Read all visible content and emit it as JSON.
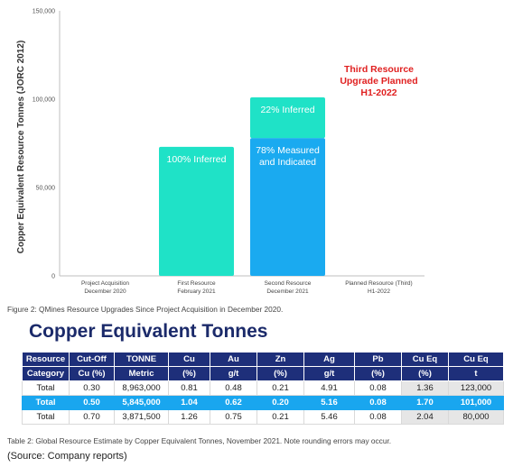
{
  "chart_data": {
    "type": "bar",
    "ylabel": "Copper Equivalent Resource Tonnes (JORC 2012)",
    "ylim": [
      0,
      150000
    ],
    "yticks": [
      0,
      50000,
      100000,
      150000
    ],
    "ytick_labels": [
      "0",
      "50,000",
      "100,000",
      "150,000"
    ],
    "grid": false,
    "categories": [
      [
        "Project Acquisition",
        "December 2020"
      ],
      [
        "First Resource",
        "February 2021"
      ],
      [
        "Second Resource",
        "December 2021"
      ],
      [
        "Planned Resource (Third)",
        "H1-2022"
      ]
    ],
    "series": [
      {
        "values": [
          0,
          0,
          78000,
          0
        ],
        "color": "#1aaaf0"
      },
      {
        "values": [
          0,
          73000,
          23000,
          0
        ],
        "color": "#1fe2c7"
      }
    ],
    "bar_labels": [
      {
        "bar": 1,
        "lines": [
          "100% Inferred"
        ]
      },
      {
        "bar": 2,
        "lines": [
          "22% Inferred"
        ]
      },
      {
        "bar": 2,
        "lines": [
          "78% Measured",
          "and Indicated"
        ]
      }
    ],
    "annotation": [
      "Third Resource",
      "Upgrade Planned",
      "H1-2022"
    ],
    "annotation_color": "#e02020"
  },
  "figure_caption": "Figure 2: QMines Resource Upgrades Since Project Acquisition in December 2020.",
  "table_title": "Copper Equivalent Tonnes",
  "table": {
    "headers": [
      [
        "Resource",
        "Category"
      ],
      [
        "Cut-Off",
        "Cu (%)"
      ],
      [
        "TONNE",
        "Metric"
      ],
      [
        "Cu",
        "(%)"
      ],
      [
        "Au",
        "g/t"
      ],
      [
        "Zn",
        "(%)"
      ],
      [
        "Ag",
        "g/t"
      ],
      [
        "Pb",
        "(%)"
      ],
      [
        "Cu Eq",
        "(%)"
      ],
      [
        "Cu Eq",
        "t"
      ]
    ],
    "rows": [
      [
        "Total",
        "0.30",
        "8,963,000",
        "0.81",
        "0.48",
        "0.21",
        "4.91",
        "0.08",
        "1.36",
        "123,000"
      ],
      [
        "Total",
        "0.50",
        "5,845,000",
        "1.04",
        "0.62",
        "0.20",
        "5.16",
        "0.08",
        "1.70",
        "101,000"
      ],
      [
        "Total",
        "0.70",
        "3,871,500",
        "1.26",
        "0.75",
        "0.21",
        "5.46",
        "0.08",
        "2.04",
        "80,000"
      ]
    ],
    "highlight_row": 1
  },
  "table_caption": "Table 2: Global Resource Estimate by Copper Equivalent Tonnes, November 2021. Note rounding errors may occur.",
  "source": "(Source: Company reports)"
}
